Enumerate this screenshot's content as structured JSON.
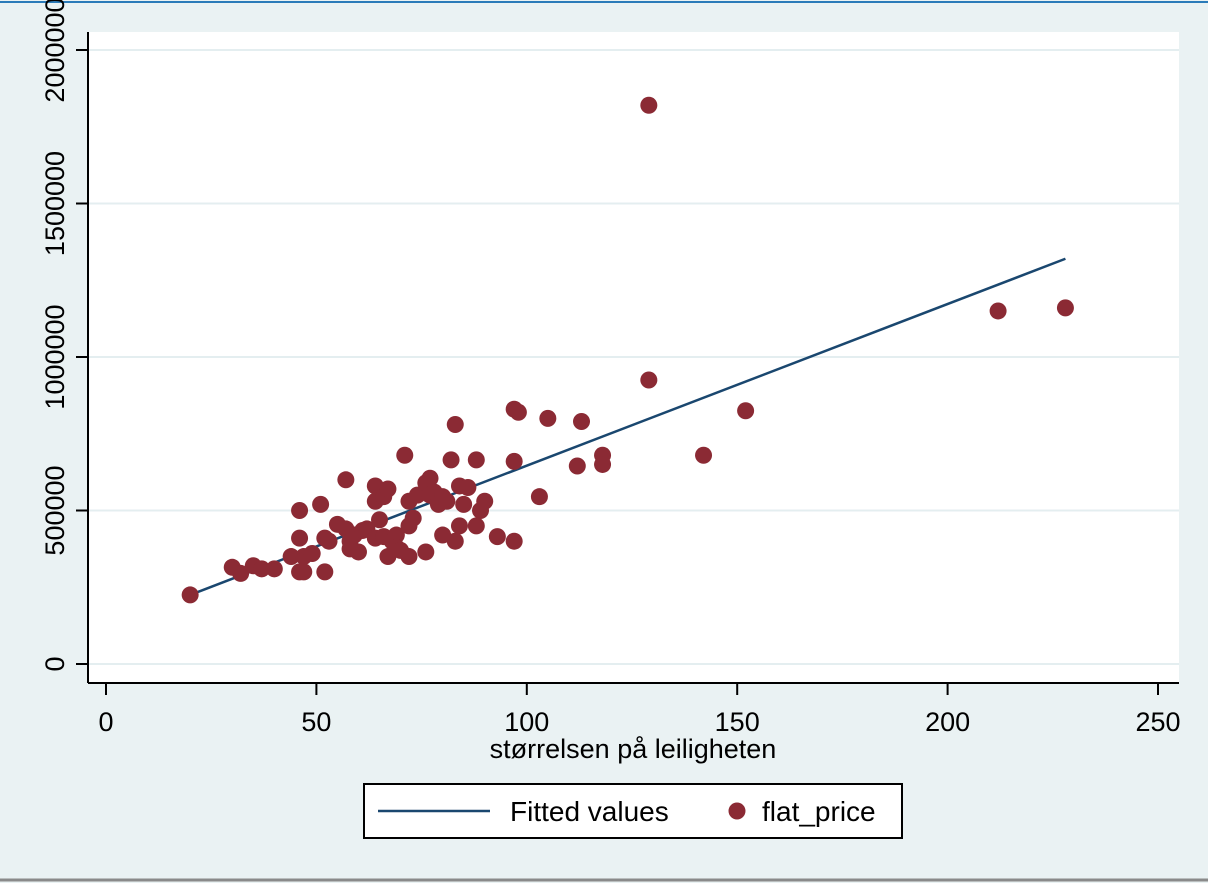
{
  "chart_data": {
    "type": "scatter",
    "title": "",
    "xlabel": "størrelsen på leiligheten",
    "ylabel": "",
    "xlim": [
      0,
      250
    ],
    "ylim": [
      0,
      2000000
    ],
    "xticks": [
      "0",
      "50",
      "100",
      "150",
      "200",
      "250"
    ],
    "yticks": [
      "0",
      "500000",
      "1000000",
      "1500000",
      "2000000"
    ],
    "grid": true,
    "legend_position": "bottom",
    "colors": {
      "points": "#8b2a34",
      "fitted_line": "#1a476f",
      "plot_background": "#ffffff",
      "outer_background": "#eaf2f3",
      "gridline": "#e4eef0"
    },
    "series": [
      {
        "name": "Fitted values",
        "kind": "line",
        "points": [
          [
            20,
            225000
          ],
          [
            228,
            1320000
          ]
        ]
      },
      {
        "name": "flat_price",
        "kind": "scatter",
        "points": [
          [
            20,
            225000
          ],
          [
            30,
            315000
          ],
          [
            32,
            295000
          ],
          [
            35,
            320000
          ],
          [
            37,
            310000
          ],
          [
            40,
            310000
          ],
          [
            44,
            350000
          ],
          [
            46,
            500000
          ],
          [
            46,
            410000
          ],
          [
            46,
            300000
          ],
          [
            47,
            350000
          ],
          [
            47,
            300000
          ],
          [
            49,
            360000
          ],
          [
            51,
            520000
          ],
          [
            52,
            300000
          ],
          [
            52,
            410000
          ],
          [
            53,
            400000
          ],
          [
            55,
            455000
          ],
          [
            57,
            600000
          ],
          [
            57,
            440000
          ],
          [
            58,
            400000
          ],
          [
            58,
            375000
          ],
          [
            59,
            420000
          ],
          [
            60,
            365000
          ],
          [
            61,
            435000
          ],
          [
            62,
            440000
          ],
          [
            64,
            580000
          ],
          [
            64,
            530000
          ],
          [
            64,
            410000
          ],
          [
            65,
            470000
          ],
          [
            66,
            545000
          ],
          [
            66,
            415000
          ],
          [
            67,
            570000
          ],
          [
            67,
            350000
          ],
          [
            68,
            400000
          ],
          [
            69,
            420000
          ],
          [
            69,
            380000
          ],
          [
            70,
            370000
          ],
          [
            71,
            680000
          ],
          [
            72,
            530000
          ],
          [
            72,
            450000
          ],
          [
            72,
            350000
          ],
          [
            73,
            475000
          ],
          [
            74,
            550000
          ],
          [
            76,
            590000
          ],
          [
            76,
            365000
          ],
          [
            77,
            605000
          ],
          [
            77,
            550000
          ],
          [
            78,
            560000
          ],
          [
            79,
            520000
          ],
          [
            80,
            545000
          ],
          [
            80,
            420000
          ],
          [
            81,
            530000
          ],
          [
            82,
            665000
          ],
          [
            83,
            780000
          ],
          [
            83,
            400000
          ],
          [
            84,
            580000
          ],
          [
            84,
            450000
          ],
          [
            85,
            520000
          ],
          [
            86,
            575000
          ],
          [
            88,
            665000
          ],
          [
            88,
            450000
          ],
          [
            89,
            500000
          ],
          [
            90,
            530000
          ],
          [
            93,
            415000
          ],
          [
            97,
            830000
          ],
          [
            97,
            660000
          ],
          [
            97,
            400000
          ],
          [
            98,
            820000
          ],
          [
            103,
            545000
          ],
          [
            105,
            800000
          ],
          [
            112,
            645000
          ],
          [
            113,
            790000
          ],
          [
            118,
            680000
          ],
          [
            118,
            650000
          ],
          [
            129,
            1820000
          ],
          [
            129,
            925000
          ],
          [
            142,
            680000
          ],
          [
            152,
            825000
          ],
          [
            212,
            1150000
          ],
          [
            228,
            1160000
          ]
        ]
      }
    ]
  }
}
